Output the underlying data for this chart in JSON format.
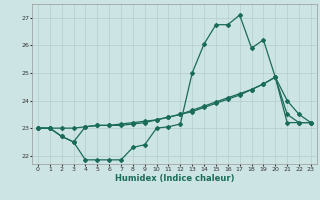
{
  "title": "",
  "xlabel": "Humidex (Indice chaleur)",
  "xlim": [
    -0.5,
    23.5
  ],
  "ylim": [
    21.7,
    27.5
  ],
  "bg_color": "#cde4e4",
  "grid_color": "#b8d0d0",
  "line_color": "#1a6b5a",
  "line1_x": [
    0,
    1,
    2,
    3,
    4,
    5,
    6,
    7,
    8,
    9,
    10,
    11,
    12,
    13,
    14,
    15,
    16,
    17,
    18,
    19,
    20,
    21,
    22,
    23
  ],
  "line1_y": [
    23.0,
    23.0,
    22.7,
    22.5,
    21.85,
    21.85,
    21.85,
    21.85,
    22.3,
    22.4,
    23.0,
    23.05,
    23.15,
    25.0,
    26.05,
    26.75,
    26.75,
    27.1,
    25.9,
    26.2,
    24.85,
    24.0,
    23.5,
    23.2
  ],
  "line2_x": [
    0,
    1,
    2,
    3,
    4,
    5,
    6,
    7,
    8,
    9,
    10,
    11,
    12,
    13,
    14,
    15,
    16,
    17,
    18,
    19,
    20,
    21,
    22,
    23
  ],
  "line2_y": [
    23.0,
    23.0,
    23.0,
    23.0,
    23.05,
    23.1,
    23.1,
    23.15,
    23.2,
    23.25,
    23.3,
    23.4,
    23.5,
    23.6,
    23.75,
    23.9,
    24.05,
    24.2,
    24.4,
    24.6,
    24.85,
    23.2,
    23.2,
    23.2
  ],
  "line3_x": [
    0,
    1,
    2,
    3,
    4,
    5,
    6,
    7,
    8,
    9,
    10,
    11,
    12,
    13,
    14,
    15,
    16,
    17,
    18,
    19,
    20,
    21,
    22,
    23
  ],
  "line3_y": [
    23.0,
    23.0,
    22.7,
    22.5,
    23.05,
    23.1,
    23.1,
    23.1,
    23.15,
    23.2,
    23.3,
    23.4,
    23.5,
    23.65,
    23.8,
    23.95,
    24.1,
    24.25,
    24.4,
    24.6,
    24.85,
    23.5,
    23.2,
    23.2
  ],
  "xticks": [
    0,
    1,
    2,
    3,
    4,
    5,
    6,
    7,
    8,
    9,
    10,
    11,
    12,
    13,
    14,
    15,
    16,
    17,
    18,
    19,
    20,
    21,
    22,
    23
  ],
  "yticks": [
    22,
    23,
    24,
    25,
    26,
    27
  ],
  "markersize": 2.0,
  "linewidth": 0.9
}
